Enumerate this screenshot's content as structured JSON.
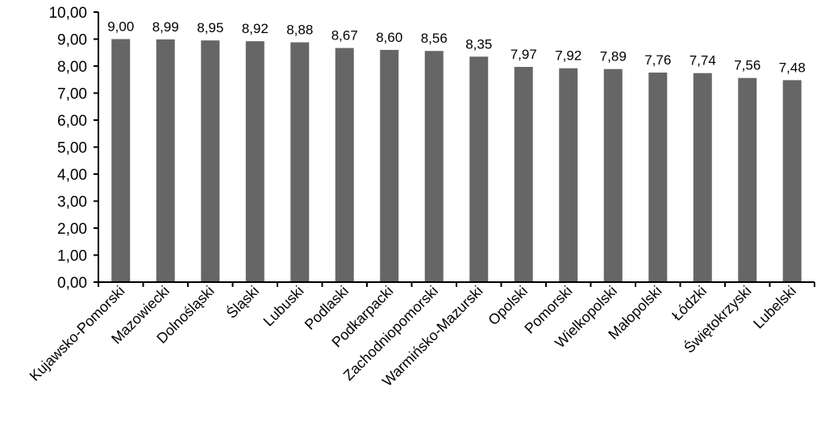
{
  "chart_data": {
    "type": "bar",
    "categories": [
      "Kujawsko-Pomorski",
      "Mazowiecki",
      "Dolnośląski",
      "Śląski",
      "Lubuski",
      "Podlaski",
      "Podkarpacki",
      "Zachodniopomorski",
      "Warmińsko-Mazurski",
      "Opolski",
      "Pomorski",
      "Wielkopolski",
      "Małopolski",
      "Łódzki",
      "Świętokrzyski",
      "Lubelski"
    ],
    "values": [
      9.0,
      8.99,
      8.95,
      8.92,
      8.88,
      8.67,
      8.6,
      8.56,
      8.35,
      7.97,
      7.92,
      7.89,
      7.76,
      7.74,
      7.56,
      7.48
    ],
    "data_labels": [
      "9,00",
      "8,99",
      "8,95",
      "8,92",
      "8,88",
      "8,67",
      "8,60",
      "8,56",
      "8,35",
      "7,97",
      "7,92",
      "7,89",
      "7,76",
      "7,74",
      "7,56",
      "7,48"
    ],
    "y_ticks": [
      {
        "value": 0,
        "label": "0,00"
      },
      {
        "value": 1,
        "label": "1,00"
      },
      {
        "value": 2,
        "label": "2,00"
      },
      {
        "value": 3,
        "label": "3,00"
      },
      {
        "value": 4,
        "label": "4,00"
      },
      {
        "value": 5,
        "label": "5,00"
      },
      {
        "value": 6,
        "label": "6,00"
      },
      {
        "value": 7,
        "label": "7,00"
      },
      {
        "value": 8,
        "label": "8,00"
      },
      {
        "value": 9,
        "label": "9,00"
      },
      {
        "value": 10,
        "label": "10,00"
      }
    ],
    "ylim": [
      0,
      10
    ],
    "grid": false,
    "legend": "none",
    "bar_color": "#666666",
    "axis_color": "#000000"
  }
}
